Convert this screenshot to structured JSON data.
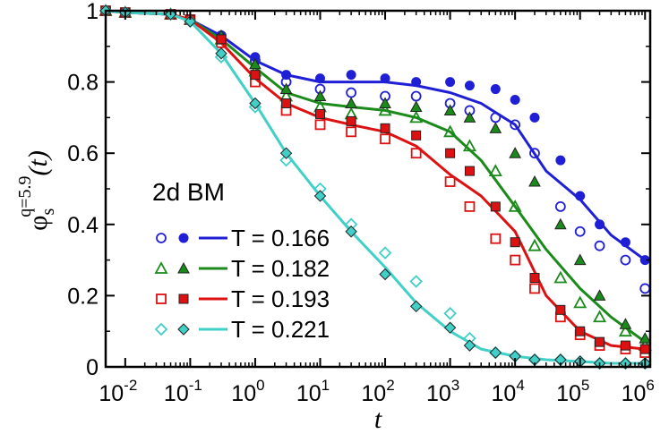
{
  "chart_data": {
    "type": "line",
    "title": "",
    "xlabel": "t",
    "ylabel_symbol": "φ",
    "ylabel_sub": "s",
    "ylabel_sup": "q=5.9",
    "ylabel_arg": "(t)",
    "xscale": "log",
    "xlim": [
      0.005,
      1200000
    ],
    "ylim": [
      0,
      1
    ],
    "x_ticks": [
      {
        "base": "10",
        "exp": "-2",
        "value": 0.01
      },
      {
        "base": "10",
        "exp": "-1",
        "value": 0.1
      },
      {
        "base": "10",
        "exp": "0",
        "value": 1
      },
      {
        "base": "10",
        "exp": "1",
        "value": 10
      },
      {
        "base": "10",
        "exp": "2",
        "value": 100
      },
      {
        "base": "10",
        "exp": "3",
        "value": 1000
      },
      {
        "base": "10",
        "exp": "4",
        "value": 10000
      },
      {
        "base": "10",
        "exp": "5",
        "value": 100000
      },
      {
        "base": "10",
        "exp": "6",
        "value": 1000000
      }
    ],
    "y_ticks": [
      {
        "label": "0",
        "value": 0
      },
      {
        "label": "0.2",
        "value": 0.2
      },
      {
        "label": "0.4",
        "value": 0.4
      },
      {
        "label": "0.6",
        "value": 0.6
      },
      {
        "label": "0.8",
        "value": 0.8
      },
      {
        "label": "1",
        "value": 1
      }
    ],
    "legend_title": "2d BM",
    "legend_position": "left",
    "series": [
      {
        "name": "T = 0.166",
        "color": "#1f1fd6",
        "marker": "circle",
        "line_x": [
          0.005,
          0.01,
          0.05,
          0.1,
          0.3,
          1,
          3,
          10,
          30,
          100,
          300,
          1000,
          3000,
          10000,
          30000,
          100000,
          300000,
          1000000
        ],
        "line_y": [
          1,
          0.995,
          0.99,
          0.975,
          0.93,
          0.86,
          0.82,
          0.8,
          0.8,
          0.8,
          0.79,
          0.77,
          0.74,
          0.68,
          0.55,
          0.47,
          0.37,
          0.3
        ],
        "open_x": [
          0.005,
          0.01,
          0.05,
          0.1,
          0.3,
          1,
          3,
          10,
          30,
          100,
          300,
          1000,
          2000,
          5000,
          10000,
          20000,
          50000,
          100000,
          200000,
          500000,
          1000000
        ],
        "open_y": [
          1,
          0.995,
          0.99,
          0.975,
          0.93,
          0.86,
          0.8,
          0.78,
          0.77,
          0.76,
          0.76,
          0.74,
          0.72,
          0.7,
          0.68,
          0.6,
          0.45,
          0.38,
          0.34,
          0.3,
          0.22
        ],
        "filled_x": [
          0.005,
          0.01,
          0.05,
          0.1,
          0.3,
          1,
          3,
          10,
          30,
          100,
          300,
          1000,
          2000,
          5000,
          10000,
          20000,
          50000,
          100000,
          200000,
          500000,
          1000000
        ],
        "filled_y": [
          1,
          0.995,
          0.99,
          0.975,
          0.93,
          0.87,
          0.82,
          0.81,
          0.82,
          0.81,
          0.8,
          0.8,
          0.79,
          0.78,
          0.75,
          0.7,
          0.58,
          0.48,
          0.4,
          0.35,
          0.3
        ]
      },
      {
        "name": "T = 0.182",
        "color": "#1a8a1a",
        "marker": "triangle",
        "line_x": [
          0.005,
          0.01,
          0.05,
          0.1,
          0.3,
          1,
          3,
          10,
          30,
          100,
          300,
          1000,
          3000,
          10000,
          30000,
          100000,
          300000,
          1000000
        ],
        "line_y": [
          1,
          0.995,
          0.99,
          0.975,
          0.92,
          0.84,
          0.77,
          0.74,
          0.73,
          0.72,
          0.7,
          0.66,
          0.58,
          0.45,
          0.33,
          0.22,
          0.14,
          0.07
        ],
        "open_x": [
          0.005,
          0.01,
          0.05,
          0.1,
          0.3,
          1,
          3,
          10,
          30,
          100,
          300,
          1000,
          2000,
          5000,
          10000,
          20000,
          50000,
          100000,
          200000,
          500000,
          1000000
        ],
        "open_y": [
          1,
          0.995,
          0.99,
          0.975,
          0.92,
          0.83,
          0.76,
          0.73,
          0.71,
          0.72,
          0.7,
          0.66,
          0.62,
          0.55,
          0.45,
          0.34,
          0.25,
          0.18,
          0.14,
          0.1,
          0.06
        ],
        "filled_x": [
          0.005,
          0.01,
          0.05,
          0.1,
          0.3,
          1,
          3,
          10,
          30,
          100,
          300,
          1000,
          2000,
          5000,
          10000,
          20000,
          50000,
          100000,
          200000,
          500000,
          1000000
        ],
        "filled_y": [
          1,
          0.995,
          0.99,
          0.975,
          0.93,
          0.85,
          0.78,
          0.76,
          0.74,
          0.74,
          0.73,
          0.72,
          0.7,
          0.67,
          0.6,
          0.52,
          0.4,
          0.3,
          0.2,
          0.12,
          0.08
        ]
      },
      {
        "name": "T = 0.193",
        "color": "#dd1111",
        "marker": "square",
        "line_x": [
          0.005,
          0.01,
          0.05,
          0.1,
          0.3,
          1,
          3,
          10,
          30,
          100,
          300,
          1000,
          3000,
          10000,
          30000,
          100000,
          300000,
          1000000
        ],
        "line_y": [
          1,
          0.995,
          0.99,
          0.975,
          0.91,
          0.81,
          0.74,
          0.7,
          0.68,
          0.66,
          0.62,
          0.54,
          0.48,
          0.38,
          0.2,
          0.1,
          0.06,
          0.05
        ],
        "open_x": [
          0.005,
          0.01,
          0.05,
          0.1,
          0.3,
          1,
          3,
          10,
          30,
          100,
          300,
          1000,
          2000,
          5000,
          10000,
          20000,
          50000,
          100000,
          200000,
          500000,
          1000000
        ],
        "open_y": [
          1,
          0.995,
          0.99,
          0.975,
          0.91,
          0.8,
          0.72,
          0.68,
          0.66,
          0.64,
          0.6,
          0.52,
          0.45,
          0.36,
          0.3,
          0.22,
          0.14,
          0.09,
          0.06,
          0.05,
          0.04
        ],
        "filled_x": [
          0.005,
          0.01,
          0.05,
          0.1,
          0.3,
          1,
          3,
          10,
          30,
          100,
          300,
          1000,
          2000,
          5000,
          10000,
          20000,
          50000,
          100000,
          200000,
          500000,
          1000000
        ],
        "filled_y": [
          1,
          0.995,
          0.99,
          0.975,
          0.92,
          0.82,
          0.74,
          0.71,
          0.69,
          0.67,
          0.65,
          0.6,
          0.55,
          0.45,
          0.35,
          0.25,
          0.16,
          0.1,
          0.07,
          0.06,
          0.05
        ]
      },
      {
        "name": "T = 0.221",
        "color": "#40d0c8",
        "marker": "diamond",
        "line_x": [
          0.005,
          0.01,
          0.05,
          0.1,
          0.3,
          1,
          3,
          10,
          30,
          100,
          300,
          1000,
          3000,
          10000,
          30000,
          100000,
          300000,
          1000000
        ],
        "line_y": [
          1,
          0.995,
          0.99,
          0.97,
          0.88,
          0.74,
          0.6,
          0.48,
          0.38,
          0.28,
          0.18,
          0.1,
          0.05,
          0.03,
          0.02,
          0.015,
          0.01,
          0.01
        ],
        "open_x": [
          0.005,
          0.01,
          0.05,
          0.1,
          0.3,
          1,
          3,
          10,
          30,
          100,
          300,
          1000,
          2000,
          5000,
          10000,
          20000,
          50000,
          100000,
          200000,
          500000,
          1000000
        ],
        "open_y": [
          1,
          0.995,
          0.99,
          0.97,
          0.87,
          0.73,
          0.58,
          0.5,
          0.4,
          0.32,
          0.24,
          0.15,
          0.08,
          0.04,
          0.03,
          0.02,
          0.02,
          0.015,
          0.01,
          0.01,
          0.01
        ],
        "filled_x": [
          0.005,
          0.01,
          0.05,
          0.1,
          0.3,
          1,
          3,
          10,
          30,
          100,
          300,
          1000,
          2000,
          5000,
          10000,
          20000,
          50000,
          100000,
          200000,
          500000,
          1000000
        ],
        "filled_y": [
          1,
          0.995,
          0.99,
          0.97,
          0.88,
          0.74,
          0.6,
          0.48,
          0.38,
          0.26,
          0.17,
          0.11,
          0.06,
          0.04,
          0.03,
          0.02,
          0.02,
          0.015,
          0.01,
          0.01,
          0.01
        ]
      }
    ]
  }
}
